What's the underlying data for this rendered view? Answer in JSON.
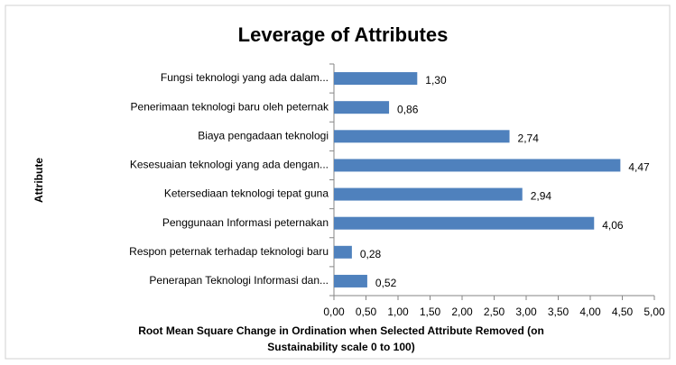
{
  "chart_data": {
    "type": "bar",
    "orientation": "horizontal",
    "title": "Leverage of Attributes",
    "y_label": "Attribute",
    "x_label": [
      "Root Mean Square Change in Ordination when Selected Attribute Removed (on",
      "Sustainability scale 0 to 100)"
    ],
    "categories": [
      "Fungsi teknologi yang ada dalam...",
      "Penerimaan teknologi baru oleh peternak",
      "Biaya pengadaan teknologi",
      "Kesesuaian teknologi yang ada dengan...",
      "Ketersediaan teknologi tepat guna",
      "Penggunaan Informasi peternakan",
      "Respon peternak terhadap teknologi baru",
      "Penerapan Teknologi Informasi dan..."
    ],
    "values": [
      1.3,
      0.86,
      2.74,
      4.47,
      2.94,
      4.06,
      0.28,
      0.52
    ],
    "value_labels": [
      "1,30",
      "0,86",
      "2,74",
      "4,47",
      "2,94",
      "4,06",
      "0,28",
      "0,52"
    ],
    "color": "#4f81bd",
    "xlim": [
      0,
      5
    ],
    "xticks": [
      {
        "value": 0,
        "label": "0,00"
      },
      {
        "value": 0.5,
        "label": "0,50"
      },
      {
        "value": 1,
        "label": "1,00"
      },
      {
        "value": 1.5,
        "label": "1,50"
      },
      {
        "value": 2,
        "label": "2,00"
      },
      {
        "value": 2.5,
        "label": "2,50"
      },
      {
        "value": 3,
        "label": "3,00"
      },
      {
        "value": 3.5,
        "label": "3,50"
      },
      {
        "value": 4,
        "label": "4,00"
      },
      {
        "value": 4.5,
        "label": "4,50"
      },
      {
        "value": 5,
        "label": "5,00"
      }
    ],
    "grid": false
  }
}
